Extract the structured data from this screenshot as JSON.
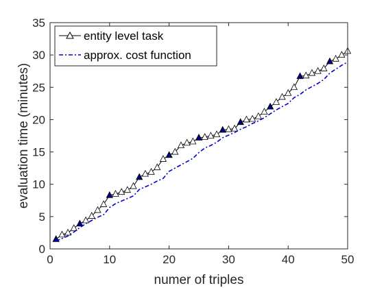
{
  "chart_data": {
    "type": "line",
    "xlabel": "numer of triples",
    "ylabel": "evaluation time (minutes)",
    "xlim": [
      0,
      50
    ],
    "ylim": [
      0,
      35
    ],
    "xticks": [
      0,
      10,
      20,
      30,
      40,
      50
    ],
    "yticks": [
      0,
      5,
      10,
      15,
      20,
      25,
      30,
      35
    ],
    "grid": false,
    "legend_position": "top-left",
    "x": [
      1,
      2,
      3,
      4,
      5,
      6,
      7,
      8,
      9,
      10,
      11,
      12,
      13,
      14,
      15,
      16,
      17,
      18,
      19,
      20,
      21,
      22,
      23,
      24,
      25,
      26,
      27,
      28,
      29,
      30,
      31,
      32,
      33,
      34,
      35,
      36,
      37,
      38,
      39,
      40,
      41,
      42,
      43,
      44,
      45,
      46,
      47,
      48,
      49,
      50
    ],
    "series": [
      {
        "name": "entity level task",
        "color": "#000000",
        "marker": "triangle-up",
        "linestyle": "solid",
        "highlighted_x": [
          1,
          5,
          10,
          15,
          20,
          25,
          29,
          32,
          37,
          42,
          47
        ],
        "highlight_color": "#000080",
        "values": [
          1.5,
          2.2,
          2.5,
          3.2,
          3.9,
          4.4,
          5.1,
          6.0,
          6.9,
          8.3,
          8.5,
          8.8,
          9.1,
          9.7,
          11.1,
          11.6,
          11.9,
          12.6,
          13.9,
          14.5,
          15.0,
          16.0,
          16.4,
          16.6,
          17.2,
          17.3,
          17.5,
          17.7,
          18.4,
          18.5,
          18.6,
          19.6,
          20.0,
          20.1,
          20.5,
          21.2,
          22.0,
          22.7,
          23.5,
          24.1,
          25.0,
          26.7,
          26.8,
          27.2,
          27.5,
          27.9,
          29.0,
          29.4,
          30.0,
          30.6
        ]
      },
      {
        "name": "approx. cost function",
        "color": "#0000cc",
        "marker": "none",
        "linestyle": "dashdot",
        "values": [
          1.2,
          1.6,
          2.0,
          2.6,
          3.3,
          3.9,
          4.4,
          4.9,
          5.3,
          6.4,
          7.0,
          7.4,
          7.8,
          8.2,
          9.2,
          9.6,
          10.0,
          10.5,
          10.9,
          12.0,
          12.5,
          13.0,
          13.5,
          14.0,
          14.9,
          15.6,
          16.0,
          16.5,
          17.2,
          17.6,
          18.0,
          18.5,
          18.9,
          19.4,
          19.8,
          20.3,
          20.9,
          21.5,
          22.0,
          22.5,
          23.4,
          23.9,
          24.6,
          25.1,
          25.6,
          26.2,
          27.2,
          27.8,
          28.4,
          28.9
        ]
      }
    ]
  }
}
